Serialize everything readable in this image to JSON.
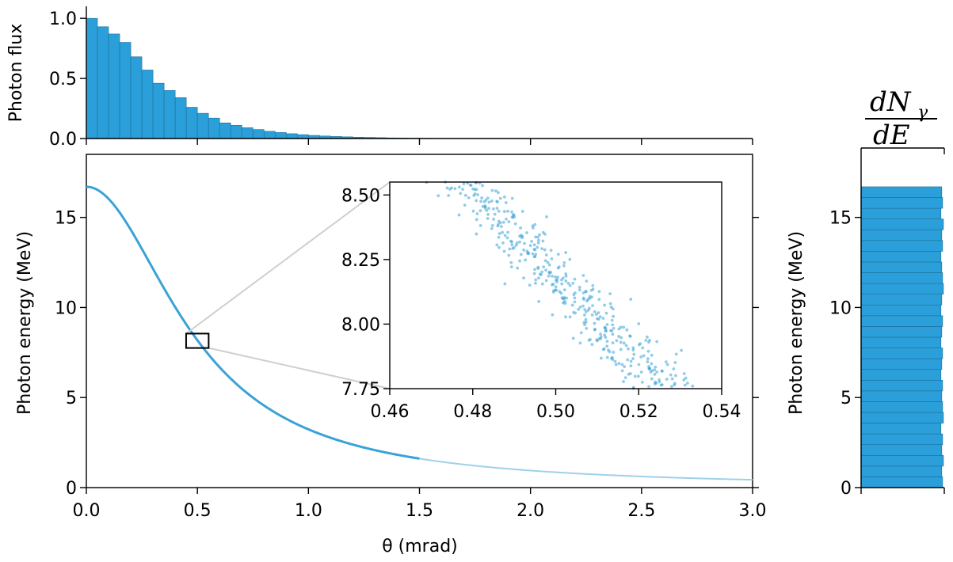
{
  "chart_data": [
    {
      "id": "top-histogram",
      "type": "bar",
      "ylabel": "Photon flux",
      "xlim": [
        0.0,
        3.0
      ],
      "ylim": [
        0.0,
        1.1
      ],
      "yticks": [
        "0.0",
        "0.5",
        "1.0"
      ],
      "bin_width": 0.05,
      "values": [
        1.0,
        0.93,
        0.87,
        0.8,
        0.68,
        0.57,
        0.46,
        0.4,
        0.34,
        0.26,
        0.21,
        0.17,
        0.13,
        0.11,
        0.09,
        0.075,
        0.06,
        0.05,
        0.04,
        0.032,
        0.026,
        0.021,
        0.017,
        0.014,
        0.011,
        0.009,
        0.007,
        0.005,
        0.004,
        0.003,
        0.002,
        0.0015,
        0.001,
        0.0008,
        0.0006,
        0.0004
      ]
    },
    {
      "id": "main-plot",
      "type": "line",
      "xlabel": "θ (mrad)",
      "ylabel": "Photon energy (MeV)",
      "xlim": [
        0.0,
        3.0
      ],
      "ylim": [
        0,
        18.5
      ],
      "xticks": [
        "0.0",
        "0.5",
        "1.0",
        "1.5",
        "2.0",
        "2.5",
        "3.0"
      ],
      "yticks": [
        "0",
        "5",
        "10",
        "15"
      ],
      "model": "E = E0 / (1 + (θ/θc)^2)",
      "E0_MeV": 16.7,
      "theta_c_mrad": 0.49,
      "zoom_box": {
        "x": [
          0.46,
          0.54
        ],
        "y": [
          7.75,
          8.55
        ]
      }
    },
    {
      "id": "inset-zoom",
      "type": "scatter",
      "xlim": [
        0.46,
        0.54
      ],
      "ylim": [
        7.75,
        8.55
      ],
      "xticks": [
        "0.46",
        "0.48",
        "0.50",
        "0.52",
        "0.54"
      ],
      "yticks": [
        "7.75",
        "8.00",
        "8.25",
        "8.50"
      ],
      "n_points": 700,
      "energy_spread_MeV": 0.06
    },
    {
      "id": "right-histogram",
      "type": "bar",
      "orientation": "horizontal",
      "title": "dNγ/dE",
      "ylabel": "Photon energy (MeV)",
      "ylim": [
        0,
        18.5
      ],
      "yticks": [
        "0",
        "5",
        "10",
        "15"
      ],
      "bin_height_MeV": 0.6,
      "bin_count": 28,
      "values": [
        0.98,
        0.97,
        0.99,
        0.97,
        0.98,
        0.96,
        0.99,
        0.98,
        0.97,
        0.98,
        0.96,
        0.97,
        0.98,
        0.96,
        0.97,
        0.98,
        0.96,
        0.97,
        0.99,
        0.98,
        0.97,
        0.96,
        0.98,
        0.97,
        0.99,
        0.96,
        0.98,
        0.97
      ],
      "max_energy_MeV": 16.7
    }
  ],
  "labels": {
    "right_title_num": "dN",
    "right_title_sub": "γ",
    "right_title_den": "dE"
  },
  "colors": {
    "bar_fill": "#2b9fd9",
    "curve": "#3aa3d6"
  }
}
